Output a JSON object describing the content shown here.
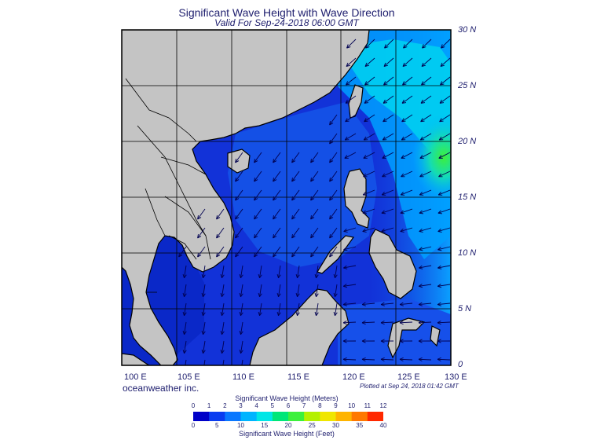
{
  "title": "Significant Wave Height with Wave Direction",
  "subtitle": "Valid For Sep-24-2018 06:00 GMT",
  "lat_labels": [
    "30 N",
    "25 N",
    "20 N",
    "15 N",
    "10 N",
    "5 N",
    "0"
  ],
  "lon_labels": [
    "100 E",
    "105 E",
    "110 E",
    "115 E",
    "120 E",
    "125 E",
    "130 E"
  ],
  "brand": "oceanweather inc.",
  "plotted_at": "Plotted at Sep 24, 2018 01:42 GMT",
  "colorbar": {
    "meters_title": "Significant Wave Height (Meters)",
    "feet_title": "Significant Wave Height (Feet)",
    "meters_ticks": [
      "0",
      "1",
      "2",
      "3",
      "4",
      "5",
      "6",
      "7",
      "8",
      "9",
      "10",
      "11",
      "12"
    ],
    "feet_ticks": [
      "0",
      "5",
      "10",
      "15",
      "20",
      "25",
      "30",
      "35",
      "40"
    ],
    "colors": [
      "#0000c8",
      "#0a3cf0",
      "#0a78ff",
      "#00b4ff",
      "#00e6e6",
      "#00e678",
      "#3cf03c",
      "#b4f000",
      "#f0e600",
      "#ffb400",
      "#ff7800",
      "#ff2800"
    ]
  },
  "colors": {
    "land": "#c4c4c4",
    "sea_low": "#1232d8",
    "sea_mid": "#1464f0",
    "sea_high": "#00c8ff",
    "sea_peak": "#3cf03c",
    "arrow": "#000050",
    "text": "#1e1e6e"
  }
}
